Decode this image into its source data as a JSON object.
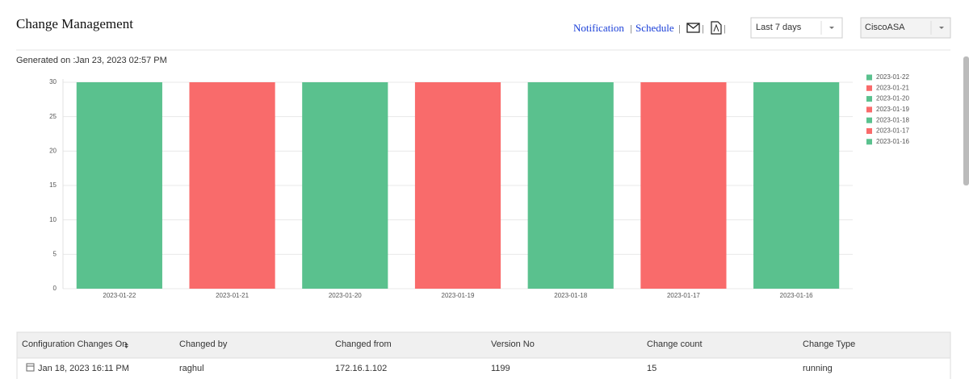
{
  "header": {
    "title": "Change Management",
    "links": [
      "Notification",
      "Schedule"
    ],
    "separator": "|",
    "period": "Last 7 days",
    "device": "CiscoASA"
  },
  "generated_label": "Generated on :",
  "generated_value": "Jan 23, 2023 02:57 PM",
  "chart_data": {
    "type": "bar",
    "categories": [
      "2023-01-22",
      "2023-01-21",
      "2023-01-20",
      "2023-01-19",
      "2023-01-18",
      "2023-01-17",
      "2023-01-16"
    ],
    "values": [
      30,
      30,
      30,
      30,
      30,
      30,
      30
    ],
    "colors": [
      "#5ac18e",
      "#f96b6b",
      "#5ac18e",
      "#f96b6b",
      "#5ac18e",
      "#f96b6b",
      "#5ac18e"
    ],
    "ylim": [
      0,
      30
    ],
    "yticks": [
      0,
      5,
      10,
      15,
      20,
      25,
      30
    ],
    "grid": true,
    "legend": "right"
  },
  "table": {
    "columns": [
      "Configuration Changes On",
      "Changed by",
      "Changed from",
      "Version No",
      "Change count",
      "Change Type"
    ],
    "rows": [
      [
        "Jan 18, 2023 16:11 PM",
        "raghul",
        "172.16.1.102",
        1199,
        15,
        "running"
      ]
    ]
  }
}
